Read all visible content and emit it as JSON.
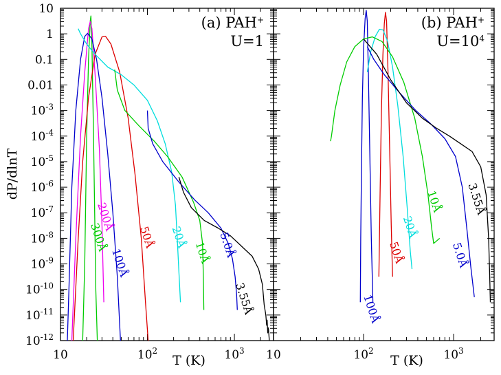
{
  "chart_data": {
    "type": "line",
    "ylabel": "dP/dlnT",
    "xlabel": "T (K)",
    "ylim_log10": [
      -12,
      1
    ],
    "y_ticks": [
      {
        "exp": 1,
        "label": "10"
      },
      {
        "exp": 0,
        "label": "1"
      },
      {
        "exp": -1,
        "label": "0.1"
      },
      {
        "exp": -2,
        "label": "0.01"
      },
      {
        "exp": -3,
        "label": "10",
        "sup": "-3"
      },
      {
        "exp": -4,
        "label": "10",
        "sup": "-4"
      },
      {
        "exp": -5,
        "label": "10",
        "sup": "-5"
      },
      {
        "exp": -6,
        "label": "10",
        "sup": "-6"
      },
      {
        "exp": -7,
        "label": "10",
        "sup": "-7"
      },
      {
        "exp": -8,
        "label": "10",
        "sup": "-8"
      },
      {
        "exp": -9,
        "label": "10",
        "sup": "-9"
      },
      {
        "exp": -10,
        "label": "10",
        "sup": "-10"
      },
      {
        "exp": -11,
        "label": "10",
        "sup": "-11"
      },
      {
        "exp": -12,
        "label": "10",
        "sup": "-12"
      }
    ],
    "panels": [
      {
        "id": "a",
        "title_line1": "(a) PAH",
        "title_sup": "+",
        "title_line2": "U=1",
        "title_line2_sup": "",
        "xlim_log10": [
          1.0,
          3.45
        ],
        "x_ticks": [
          {
            "exp": 1,
            "label": "10",
            "sup": ""
          },
          {
            "exp": 2,
            "label": "10",
            "sup": "2"
          },
          {
            "exp": 3,
            "label": "10",
            "sup": "3"
          }
        ],
        "series": [
          {
            "label": "300Å",
            "color": "#00cc00",
            "label_T": 25,
            "label_logy": -8.0,
            "points": [
              [
                18,
                -12
              ],
              [
                19,
                -9
              ],
              [
                20,
                -4
              ],
              [
                21,
                -1
              ],
              [
                22,
                0.5
              ],
              [
                22.4,
                0.7
              ],
              [
                23,
                -0.5
              ],
              [
                24,
                -4
              ],
              [
                25.5,
                -10
              ],
              [
                26.5,
                -12
              ]
            ]
          },
          {
            "label": "200Å",
            "color": "#ee00ee",
            "label_T": 30,
            "label_logy": -7.2,
            "points": [
              [
                13.5,
                -12
              ],
              [
                15,
                -8
              ],
              [
                17,
                -4
              ],
              [
                19,
                -1.5
              ],
              [
                21,
                0.2
              ],
              [
                22,
                0.48
              ],
              [
                23,
                0.2
              ],
              [
                25,
                -1.6
              ],
              [
                28,
                -4.5
              ],
              [
                30,
                -7.5
              ],
              [
                31.5,
                -10.5
              ]
            ]
          },
          {
            "label": "100Å",
            "color": "#0000cc",
            "label_T": 44,
            "label_logy": -9.0,
            "points": [
              [
                12,
                -12
              ],
              [
                12.5,
                -10
              ],
              [
                13.5,
                -6
              ],
              [
                15,
                -3
              ],
              [
                17,
                -1
              ],
              [
                19,
                -0.1
              ],
              [
                20.5,
                0.02
              ],
              [
                23,
                -0.2
              ],
              [
                26,
                -1
              ],
              [
                30,
                -2.5
              ],
              [
                35,
                -4.7
              ],
              [
                40,
                -7
              ],
              [
                45,
                -9.5
              ],
              [
                49,
                -12
              ]
            ]
          },
          {
            "label": "50Å",
            "color": "#dd0000",
            "label_T": 90,
            "label_logy": -8.0,
            "points": [
              [
                14,
                -12
              ],
              [
                16,
                -8
              ],
              [
                18,
                -5
              ],
              [
                21,
                -2.5
              ],
              [
                25,
                -0.8
              ],
              [
                30,
                -0.12
              ],
              [
                33,
                -0.1
              ],
              [
                38,
                -0.4
              ],
              [
                48,
                -1.5
              ],
              [
                60,
                -3.3
              ],
              [
                72,
                -5.5
              ],
              [
                85,
                -8
              ],
              [
                95,
                -10.5
              ],
              [
                102,
                -12
              ]
            ]
          },
          {
            "label": "20Å",
            "color": "#00dddd",
            "label_T": 210,
            "label_logy": -8.0,
            "points": [
              [
                16,
                0.2
              ],
              [
                17,
                0
              ],
              [
                20,
                -0.4
              ],
              [
                25,
                -0.8
              ],
              [
                35,
                -1.3
              ],
              [
                50,
                -1.6
              ],
              [
                70,
                -2
              ],
              [
                100,
                -2.6
              ],
              [
                130,
                -3.4
              ],
              [
                160,
                -4.3
              ],
              [
                190,
                -5.4
              ],
              [
                210,
                -6.7
              ],
              [
                220,
                -8
              ],
              [
                230,
                -9.3
              ],
              [
                240,
                -10.5
              ]
            ]
          },
          {
            "label": "10Å",
            "color": "#00cc00",
            "label_T": 390,
            "label_logy": -8.6,
            "points": [
              [
                42,
                -1.4
              ],
              [
                45,
                -2.2
              ],
              [
                55,
                -3
              ],
              [
                80,
                -3.6
              ],
              [
                120,
                -4.2
              ],
              [
                170,
                -4.8
              ],
              [
                250,
                -5.6
              ],
              [
                340,
                -6.6
              ],
              [
                400,
                -7.3
              ],
              [
                430,
                -8.2
              ],
              [
                440,
                -9.5
              ],
              [
                445,
                -10.8
              ]
            ]
          },
          {
            "label": "5.0Å",
            "color": "#0000cc",
            "label_T": 760,
            "label_logy": -8.3,
            "points": [
              [
                100,
                -3
              ],
              [
                102,
                -3.7
              ],
              [
                115,
                -4.3
              ],
              [
                150,
                -5
              ],
              [
                230,
                -5.8
              ],
              [
                350,
                -6.5
              ],
              [
                500,
                -7
              ],
              [
                700,
                -7.6
              ],
              [
                850,
                -8.2
              ],
              [
                950,
                -8.8
              ],
              [
                1020,
                -9.5
              ],
              [
                1060,
                -10.2
              ],
              [
                1080,
                -10.8
              ]
            ]
          },
          {
            "label": "3.55Å",
            "color": "#000000",
            "label_T": 1180,
            "label_logy": -10.4,
            "points": [
              [
                230,
                -5.6
              ],
              [
                260,
                -6.2
              ],
              [
                320,
                -6.8
              ],
              [
                450,
                -7.3
              ],
              [
                650,
                -7.6
              ],
              [
                900,
                -7.9
              ],
              [
                1200,
                -8.3
              ],
              [
                1600,
                -8.7
              ],
              [
                1900,
                -9.2
              ],
              [
                2100,
                -9.8
              ],
              [
                2200,
                -10.6
              ],
              [
                2300,
                -11
              ],
              [
                2350,
                -11.4
              ],
              [
                2380,
                -11.2
              ],
              [
                2420,
                -11.7
              ],
              [
                2460,
                -11.5
              ],
              [
                2520,
                -12
              ]
            ]
          }
        ]
      },
      {
        "id": "b",
        "title_line1": "(b) PAH",
        "title_sup": "+",
        "title_line2": "U=10",
        "title_line2_sup": "4",
        "xlim_log10": [
          1.0,
          3.45
        ],
        "x_ticks": [
          {
            "exp": 1,
            "label": "10",
            "sup": ""
          },
          {
            "exp": 2,
            "label": "10",
            "sup": "2"
          },
          {
            "exp": 3,
            "label": "10",
            "sup": "3"
          }
        ],
        "series": [
          {
            "label": "100Å",
            "color": "#0000cc",
            "label_T": 112,
            "label_logy": -10.8,
            "points": [
              [
                92,
                -10.5
              ],
              [
                93,
                -8
              ],
              [
                95,
                -5
              ],
              [
                97,
                -2.5
              ],
              [
                100,
                -0.6
              ],
              [
                104,
                0.6
              ],
              [
                107,
                0.92
              ],
              [
                110,
                0.5
              ],
              [
                113,
                -1.5
              ],
              [
                117,
                -4.5
              ],
              [
                122,
                -8
              ],
              [
                127,
                -10.5
              ]
            ]
          },
          {
            "label": "50Å",
            "color": "#dd0000",
            "label_T": 212,
            "label_logy": -8.6,
            "points": [
              [
                148,
                -9.5
              ],
              [
                153,
                -6
              ],
              [
                158,
                -3
              ],
              [
                164,
                -0.8
              ],
              [
                170,
                0.4
              ],
              [
                175,
                0.84
              ],
              [
                180,
                0.5
              ],
              [
                187,
                -1.5
              ],
              [
                195,
                -4.5
              ],
              [
                203,
                -7.5
              ],
              [
                210,
                -9.5
              ]
            ]
          },
          {
            "label": "20Å",
            "color": "#00dddd",
            "label_T": 300,
            "label_logy": -7.6,
            "points": [
              [
                110,
                -1.5
              ],
              [
                120,
                -0.7
              ],
              [
                135,
                -0.1
              ],
              [
                150,
                0.18
              ],
              [
                165,
                0.15
              ],
              [
                185,
                -0.3
              ],
              [
                210,
                -1.3
              ],
              [
                240,
                -2.8
              ],
              [
                275,
                -4.8
              ],
              [
                305,
                -6.8
              ],
              [
                330,
                -8.5
              ],
              [
                345,
                -9.2
              ]
            ]
          },
          {
            "label": "10Å",
            "color": "#00cc00",
            "label_T": 560,
            "label_logy": -6.6,
            "points": [
              [
                43,
                -4.2
              ],
              [
                44,
                -4
              ],
              [
                48,
                -3
              ],
              [
                55,
                -2
              ],
              [
                65,
                -1.1
              ],
              [
                80,
                -0.5
              ],
              [
                100,
                -0.2
              ],
              [
                125,
                -0.12
              ],
              [
                160,
                -0.3
              ],
              [
                210,
                -0.9
              ],
              [
                280,
                -1.9
              ],
              [
                370,
                -3.3
              ],
              [
                450,
                -4.8
              ],
              [
                520,
                -6.3
              ],
              [
                570,
                -7.6
              ],
              [
                600,
                -8.2
              ],
              [
                700,
                -8
              ]
            ]
          },
          {
            "label": "5.0Å",
            "color": "#0000cc",
            "label_T": 1080,
            "label_logy": -8.7,
            "points": [
              [
                110,
                -0.5
              ],
              [
                130,
                -1
              ],
              [
                170,
                -1.6
              ],
              [
                250,
                -2.3
              ],
              [
                380,
                -3
              ],
              [
                550,
                -3.5
              ],
              [
                800,
                -4.1
              ],
              [
                1050,
                -4.8
              ],
              [
                1250,
                -6
              ],
              [
                1400,
                -7.6
              ],
              [
                1550,
                -9.1
              ],
              [
                1700,
                -10.3
              ]
            ]
          },
          {
            "label": "3.55Å",
            "color": "#000000",
            "label_T": 1650,
            "label_logy": -6.5,
            "points": [
              [
                100,
                -0.2
              ],
              [
                140,
                -0.8
              ],
              [
                200,
                -1.8
              ],
              [
                300,
                -2.7
              ],
              [
                450,
                -3.3
              ],
              [
                650,
                -3.7
              ],
              [
                900,
                -4
              ],
              [
                1200,
                -4.3
              ],
              [
                1600,
                -4.6
              ],
              [
                2000,
                -5.2
              ],
              [
                2300,
                -6.3
              ],
              [
                2450,
                -8
              ],
              [
                2520,
                -9.5
              ],
              [
                2560,
                -10.5
              ]
            ]
          }
        ]
      }
    ]
  }
}
